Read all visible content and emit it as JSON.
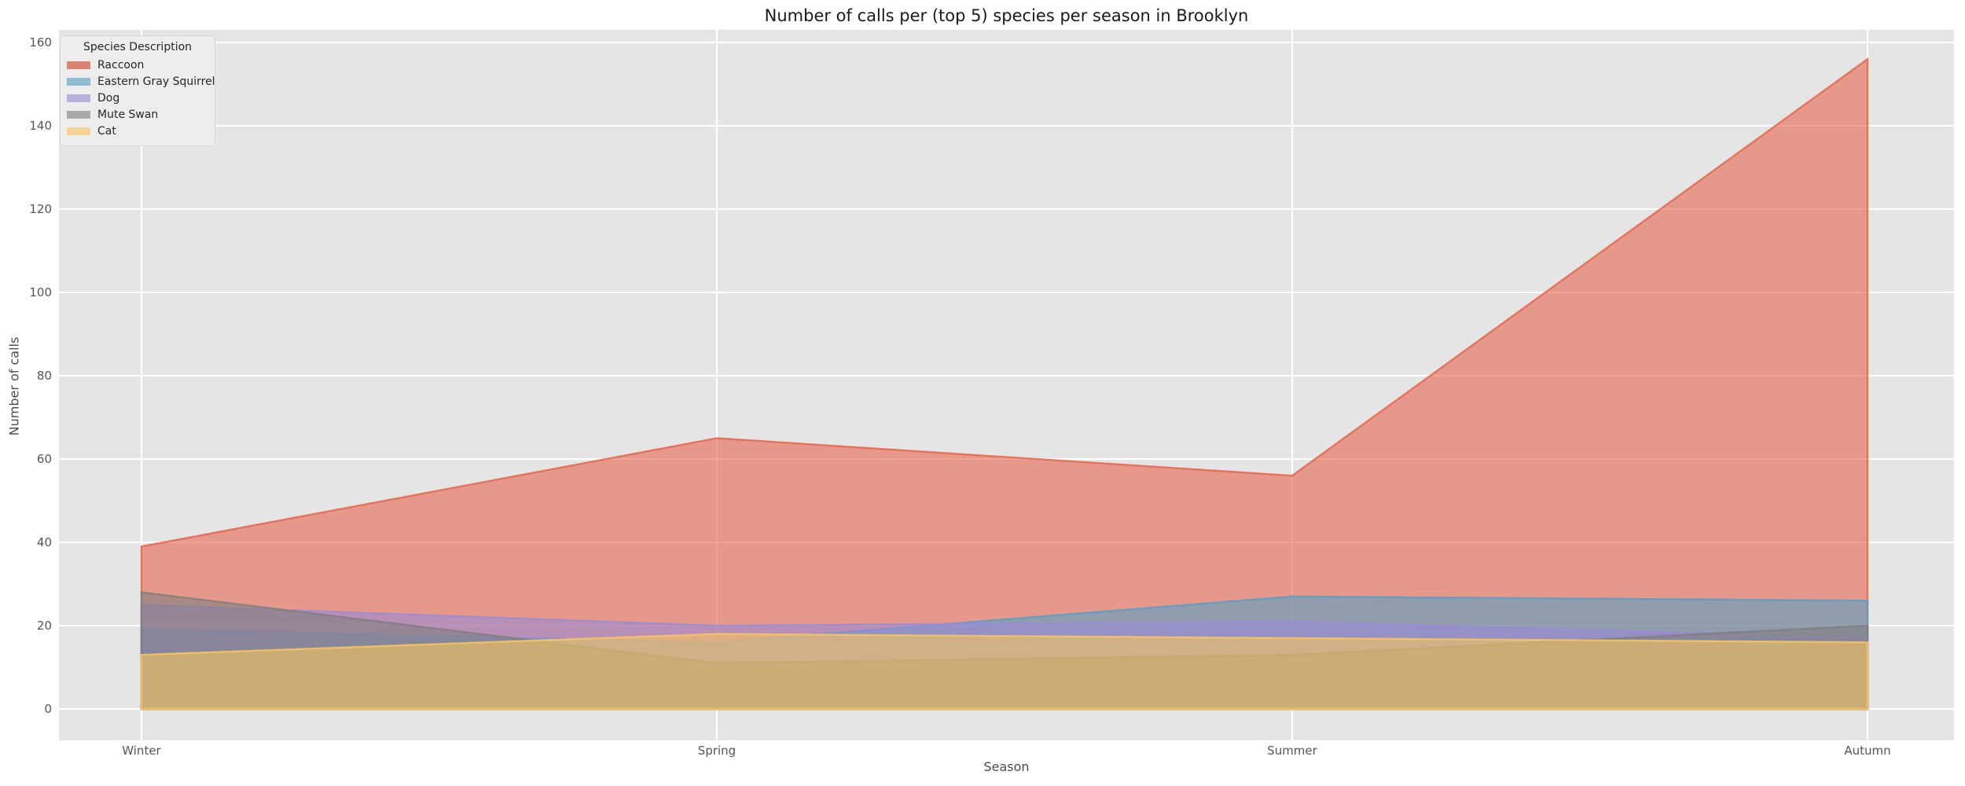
{
  "chart_data": {
    "type": "area",
    "stacked": false,
    "title": "Number of calls per (top 5) species per season in Brooklyn",
    "xlabel": "Season",
    "ylabel": "Number of calls",
    "legend_title": "Species Description",
    "categories": [
      "Winter",
      "Spring",
      "Summer",
      "Autumn"
    ],
    "y_ticks": [
      0,
      20,
      40,
      60,
      80,
      100,
      120,
      140,
      160
    ],
    "ylim": [
      -7.5,
      163
    ],
    "grid": true,
    "legend_position": "upper-left",
    "series": [
      {
        "name": "Raccoon",
        "color": "#e6654c",
        "legend_color": "#dd8374",
        "values": [
          39,
          65,
          56,
          156
        ]
      },
      {
        "name": "Eastern Gray Squirrel",
        "color": "#599ec5",
        "legend_color": "#92bcd3",
        "values": [
          19,
          16,
          27,
          26
        ]
      },
      {
        "name": "Dog",
        "color": "#9a8bd6",
        "legend_color": "#b9b0dd",
        "values": [
          25,
          20,
          21,
          17
        ]
      },
      {
        "name": "Mute Swan",
        "color": "#7f7f7f",
        "legend_color": "#a9a9a9",
        "values": [
          28,
          11,
          13,
          20
        ]
      },
      {
        "name": "Cat",
        "color": "#f9c55e",
        "legend_color": "#f2d395",
        "values": [
          13,
          18,
          17,
          16
        ]
      }
    ],
    "style": {
      "plot_background": "#e5e5e5",
      "grid_color": "#ffffff",
      "fill_alpha": 0.6,
      "line_alpha": 0.85
    }
  }
}
